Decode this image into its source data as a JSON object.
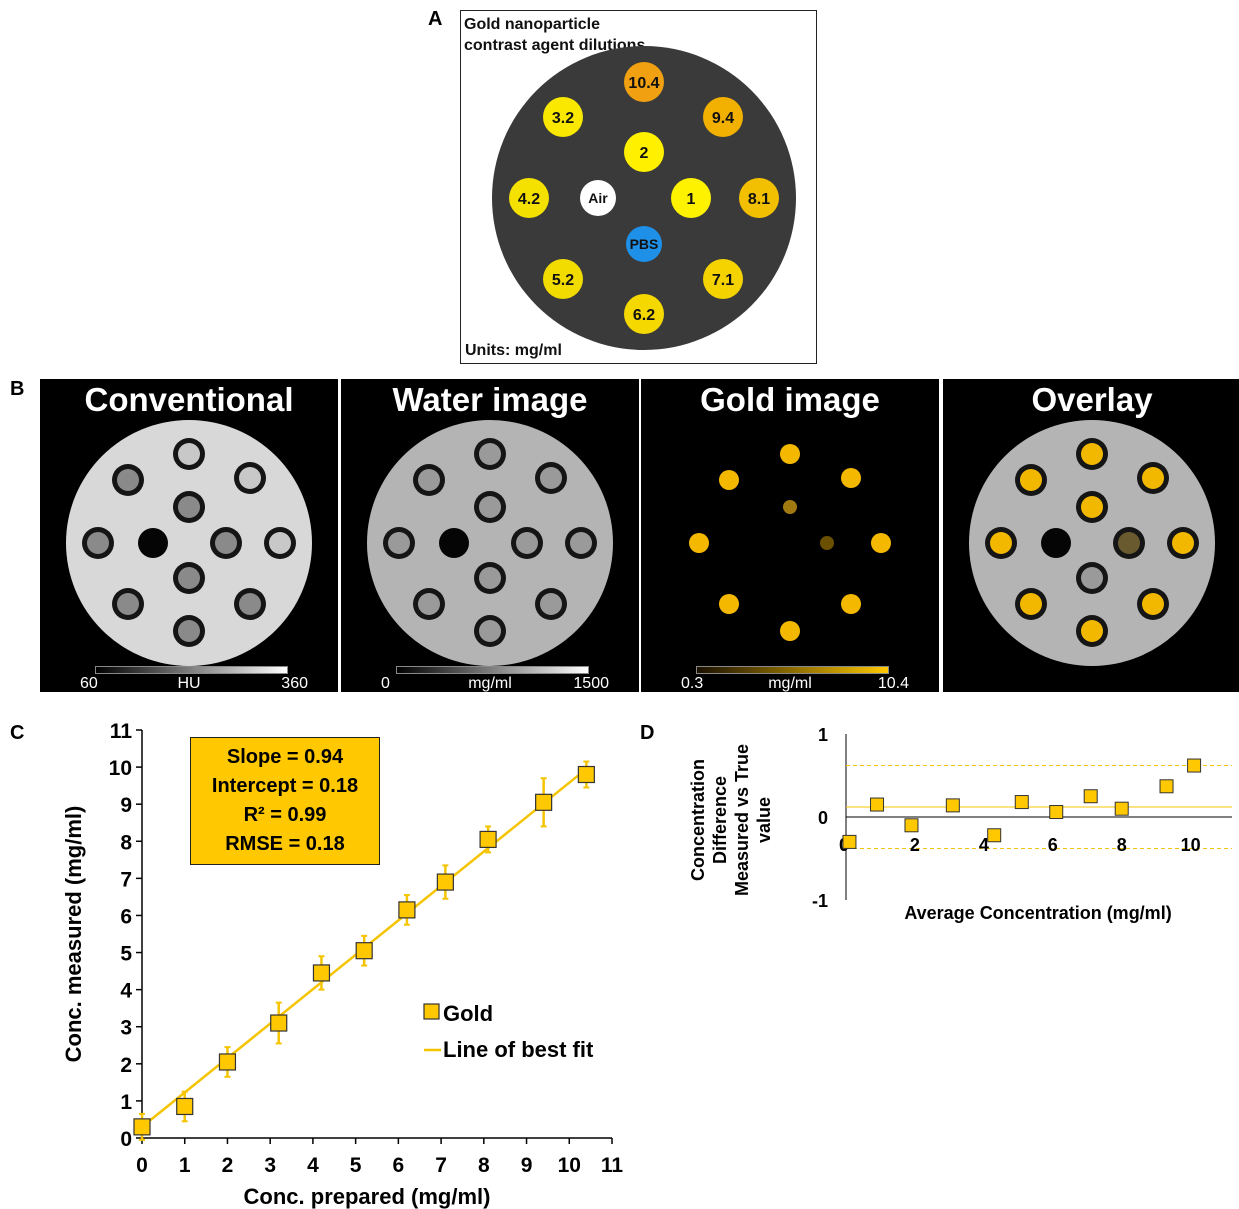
{
  "panel_letters": {
    "a": "A",
    "b": "B",
    "c": "C",
    "d": "D"
  },
  "panel_a": {
    "title": "Gold nanoparticle contrast agent dilutions",
    "units": "Units: mg/ml",
    "wells": [
      {
        "label": "10.4",
        "color": "#F0A010"
      },
      {
        "label": "9.4",
        "color": "#F2B000"
      },
      {
        "label": "8.1",
        "color": "#F2C000"
      },
      {
        "label": "7.1",
        "color": "#F5D300"
      },
      {
        "label": "6.2",
        "color": "#F5D800"
      },
      {
        "label": "5.2",
        "color": "#F2DC00"
      },
      {
        "label": "4.2",
        "color": "#F5E100"
      },
      {
        "label": "3.2",
        "color": "#FAE800"
      },
      {
        "label": "2",
        "color": "#FFF000"
      },
      {
        "label": "1",
        "color": "#FFF200"
      },
      {
        "label": "Air",
        "color": "#FFFFFF"
      },
      {
        "label": "PBS",
        "color": "#1E90E8"
      }
    ],
    "phantom_color": "#3A3A3A"
  },
  "panel_b": [
    {
      "title": "Conventional",
      "colorbar": {
        "min": "60",
        "unit": "HU",
        "max": "360",
        "gradient": [
          "#000000",
          "#FFFFFF"
        ]
      }
    },
    {
      "title": "Water image",
      "colorbar": {
        "min": "0",
        "unit": "mg/ml",
        "max": "1500",
        "gradient": [
          "#000000",
          "#FFFFFF"
        ]
      }
    },
    {
      "title": "Gold image",
      "colorbar": {
        "min": "0.3",
        "unit": "mg/ml",
        "max": "10.4",
        "gradient": [
          "#1a1000",
          "#FFC800"
        ]
      }
    },
    {
      "title": "Overlay",
      "colorbar": null
    }
  ],
  "panel_c_fit": {
    "slope": "Slope = 0.94",
    "intercept": "Intercept = 0.18",
    "r2": "R² = 0.99",
    "rmse": "RMSE = 0.18"
  },
  "colors": {
    "gold": "#FFC800",
    "fit_line": "#F5C400"
  },
  "chart_data": [
    {
      "type": "scatter",
      "panel": "C",
      "xlabel": "Conc. prepared (mg/ml)",
      "ylabel": "Conc. measured (mg/ml)",
      "xlim": [
        0,
        11
      ],
      "ylim": [
        0,
        11
      ],
      "xticks": [
        0,
        1,
        2,
        3,
        4,
        5,
        6,
        7,
        8,
        9,
        10,
        11
      ],
      "yticks": [
        0,
        1,
        2,
        3,
        4,
        5,
        6,
        7,
        8,
        9,
        10,
        11
      ],
      "series": [
        {
          "name": "Gold",
          "x": [
            0,
            1,
            2,
            3.2,
            4.2,
            5.2,
            6.2,
            7.1,
            8.1,
            9.4,
            10.4
          ],
          "y": [
            0.3,
            0.85,
            2.05,
            3.1,
            4.45,
            5.05,
            6.15,
            6.9,
            8.05,
            9.05,
            9.8
          ],
          "err": [
            0.35,
            0.4,
            0.4,
            0.55,
            0.45,
            0.4,
            0.4,
            0.45,
            0.35,
            0.65,
            0.35
          ]
        }
      ],
      "fit": {
        "name": "Line of best fit",
        "x": [
          0,
          10.4
        ],
        "y": [
          0.3,
          9.95
        ]
      },
      "legend": "center-right"
    },
    {
      "type": "scatter",
      "panel": "D",
      "xlabel": "Average Concentration (mg/ml)",
      "ylabel": "Concentration Difference Measured vs True value",
      "xlim": [
        0,
        11.2
      ],
      "ylim": [
        -1,
        1
      ],
      "xticks": [
        0,
        2,
        4,
        6,
        8,
        10
      ],
      "yticks": [
        -1,
        0,
        1
      ],
      "x": [
        0.1,
        0.9,
        1.9,
        3.1,
        4.3,
        5.1,
        6.1,
        7.1,
        8.0,
        9.3,
        10.1
      ],
      "y": [
        -0.3,
        0.15,
        -0.1,
        0.14,
        -0.22,
        0.18,
        0.06,
        0.25,
        0.1,
        0.37,
        0.62
      ],
      "mean_line": 0.12,
      "limits": [
        0.62,
        -0.38
      ]
    }
  ]
}
